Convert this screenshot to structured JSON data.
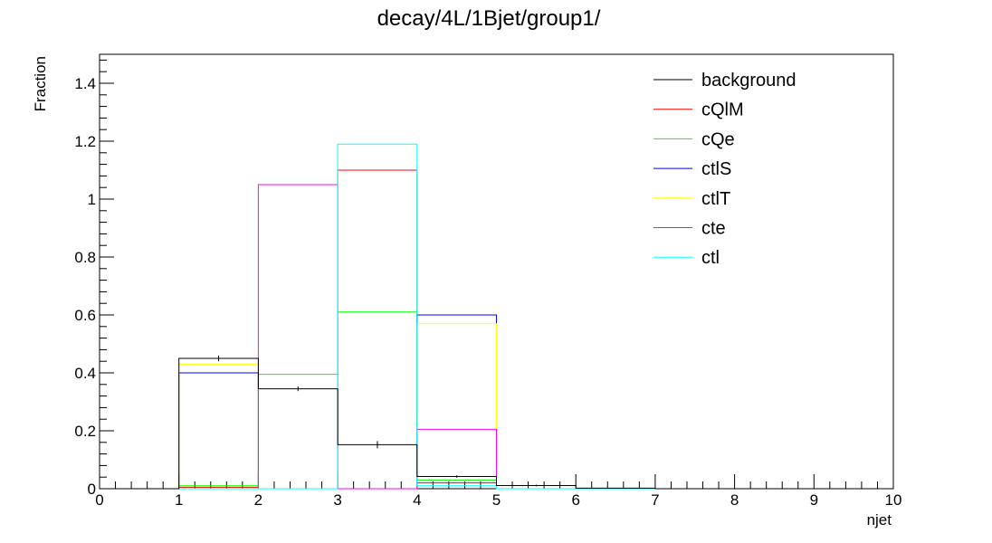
{
  "chart_data": {
    "type": "step",
    "title": "decay/4L/1Bjet/group1/",
    "xlabel": "njet",
    "ylabel": "Fraction",
    "xlim": [
      0,
      10
    ],
    "ylim": [
      0,
      1.5
    ],
    "x_ticks": [
      "0",
      "1",
      "2",
      "3",
      "4",
      "5",
      "6",
      "7",
      "8",
      "9",
      "10"
    ],
    "y_ticks": [
      {
        "value": 0,
        "label": "0"
      },
      {
        "value": 0.2,
        "label": "0.2"
      },
      {
        "value": 0.4,
        "label": "0.4"
      },
      {
        "value": 0.6,
        "label": "0.6"
      },
      {
        "value": 0.8,
        "label": "0.8"
      },
      {
        "value": 1.0,
        "label": "1"
      },
      {
        "value": 1.2,
        "label": "1.2"
      },
      {
        "value": 1.4,
        "label": "1.4"
      }
    ],
    "bin_edges": [
      0,
      1,
      2,
      3,
      4,
      5,
      6,
      7,
      8,
      9,
      10
    ],
    "legend_position": "top-right",
    "series": [
      {
        "name": "background",
        "color": "#000000",
        "values": [
          0,
          0.45,
          0.345,
          0.152,
          0.042,
          0.011,
          0.002,
          0,
          0,
          0
        ],
        "errors": [
          0,
          0.01,
          0.008,
          0.015,
          0.004,
          0.003,
          0,
          0,
          0,
          0
        ]
      },
      {
        "name": "cQlM",
        "color": "#ff0000",
        "values": [
          0,
          0.005,
          0,
          1.1,
          0.02,
          0,
          0,
          0,
          0,
          0
        ]
      },
      {
        "name": "cQe",
        "color": "#00ff00",
        "values": [
          0,
          0.01,
          0.395,
          0.61,
          0.03,
          0,
          0,
          0,
          0,
          0
        ]
      },
      {
        "name": "ctlS",
        "color": "#0000ff",
        "values": [
          0,
          0.4,
          0,
          0,
          0.6,
          0,
          0,
          0,
          0,
          0
        ]
      },
      {
        "name": "ctlT",
        "color": "#ffff00",
        "values": [
          0,
          0.43,
          0,
          0,
          0.57,
          0,
          0,
          0,
          0,
          0
        ]
      },
      {
        "name": "cte",
        "color": "#ff00ff",
        "values": [
          0,
          0,
          1.05,
          0,
          0.205,
          0,
          0,
          0,
          0,
          0
        ]
      },
      {
        "name": "ctl",
        "color": "#00ffff",
        "values": [
          0,
          0,
          0,
          1.19,
          0.01,
          0,
          0,
          0,
          0,
          0
        ]
      }
    ]
  }
}
